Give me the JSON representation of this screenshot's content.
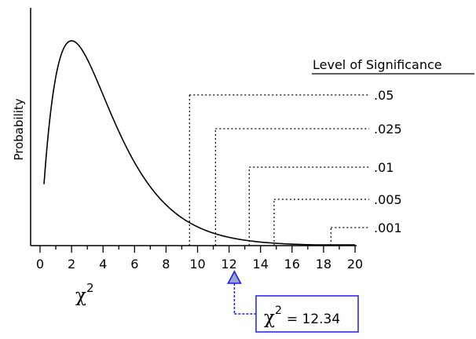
{
  "chart_data": {
    "type": "line",
    "title": "",
    "ylabel": "Probability",
    "xlabel": {
      "symbol": "χ",
      "superscript": "2"
    },
    "xlim": [
      0,
      20
    ],
    "x_ticks": [
      0,
      2,
      4,
      6,
      8,
      10,
      12,
      14,
      16,
      18,
      20
    ],
    "tick_labels": [
      "0",
      "2",
      "4",
      "6",
      "8",
      "10",
      "12",
      "14",
      "16",
      "18",
      "20"
    ],
    "degrees_of_freedom": 4,
    "grid": false,
    "legend_title": "Level of Significance",
    "significance_levels": [
      {
        "label": ".05",
        "critical_value": 9.49
      },
      {
        "label": ".025",
        "critical_value": 11.14
      },
      {
        "label": ".01",
        "critical_value": 13.28
      },
      {
        "label": ".005",
        "critical_value": 14.86
      },
      {
        "label": ".001",
        "critical_value": 18.47
      }
    ],
    "observed": {
      "symbol": "χ",
      "superscript": "2",
      "equals_text": "= 12.34",
      "value": 12.34
    },
    "colors": {
      "curve": "#000000",
      "callout_border": "#1a1aff",
      "callout_arrow": "#1a1aff",
      "marker_fill": "#9aa6c8"
    }
  }
}
